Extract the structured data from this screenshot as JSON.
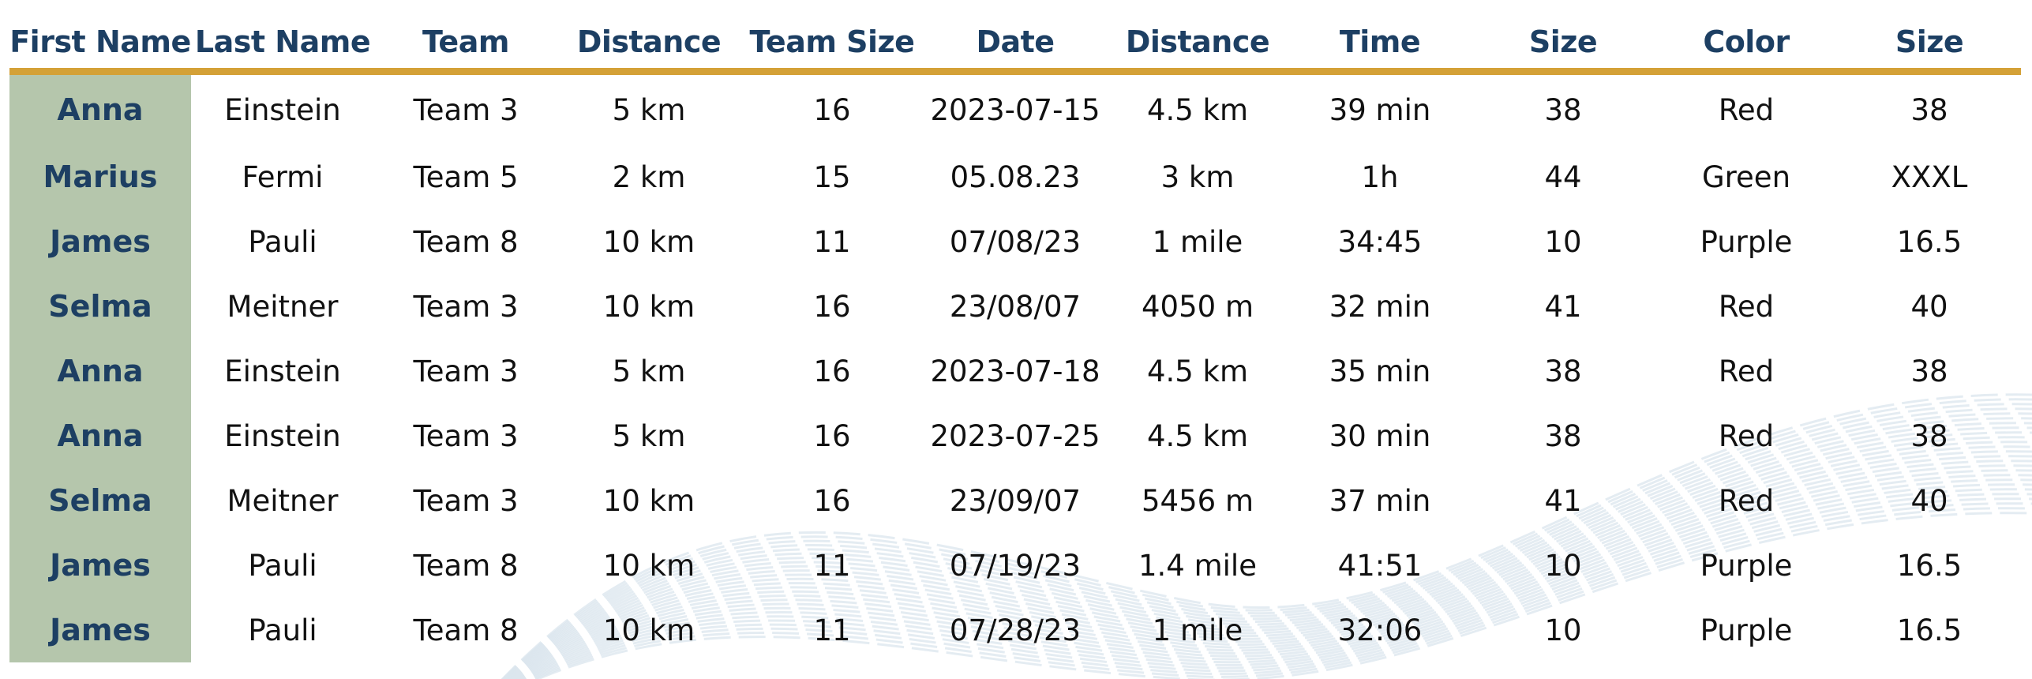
{
  "colors": {
    "header_text": "#1d3f63",
    "header_rule": "#d4a137",
    "first_column_bg": "#b5c6ac",
    "body_text": "#111111",
    "background_waves": "#dbe6ee"
  },
  "table": {
    "columns": [
      "First Name",
      "Last Name",
      "Team",
      "Distance",
      "Team Size",
      "Date",
      "Distance",
      "Time",
      "Size",
      "Color",
      "Size"
    ],
    "rows": [
      [
        "Anna",
        "Einstein",
        "Team 3",
        "5 km",
        "16",
        "2023-07-15",
        "4.5 km",
        "39 min",
        "38",
        "Red",
        "38"
      ],
      [
        "Marius",
        "Fermi",
        "Team 5",
        "2 km",
        "15",
        "05.08.23",
        "3 km",
        "1h",
        "44",
        "Green",
        "XXXL"
      ],
      [
        "James",
        "Pauli",
        "Team 8",
        "10 km",
        "11",
        "07/08/23",
        "1 mile",
        "34:45",
        "10",
        "Purple",
        "16.5"
      ],
      [
        "Selma",
        "Meitner",
        "Team 3",
        "10 km",
        "16",
        "23/08/07",
        "4050 m",
        "32 min",
        "41",
        "Red",
        "40"
      ],
      [
        "Anna",
        "Einstein",
        "Team 3",
        "5 km",
        "16",
        "2023-07-18",
        "4.5 km",
        "35 min",
        "38",
        "Red",
        "38"
      ],
      [
        "Anna",
        "Einstein",
        "Team 3",
        "5 km",
        "16",
        "2023-07-25",
        "4.5 km",
        "30 min",
        "38",
        "Red",
        "38"
      ],
      [
        "Selma",
        "Meitner",
        "Team 3",
        "10 km",
        "16",
        "23/09/07",
        "5456 m",
        "37 min",
        "41",
        "Red",
        "40"
      ],
      [
        "James",
        "Pauli",
        "Team 8",
        "10 km",
        "11",
        "07/19/23",
        "1.4 mile",
        "41:51",
        "10",
        "Purple",
        "16.5"
      ],
      [
        "James",
        "Pauli",
        "Team 8",
        "10 km",
        "11",
        "07/28/23",
        "1 mile",
        "32:06",
        "10",
        "Purple",
        "16.5"
      ]
    ]
  }
}
